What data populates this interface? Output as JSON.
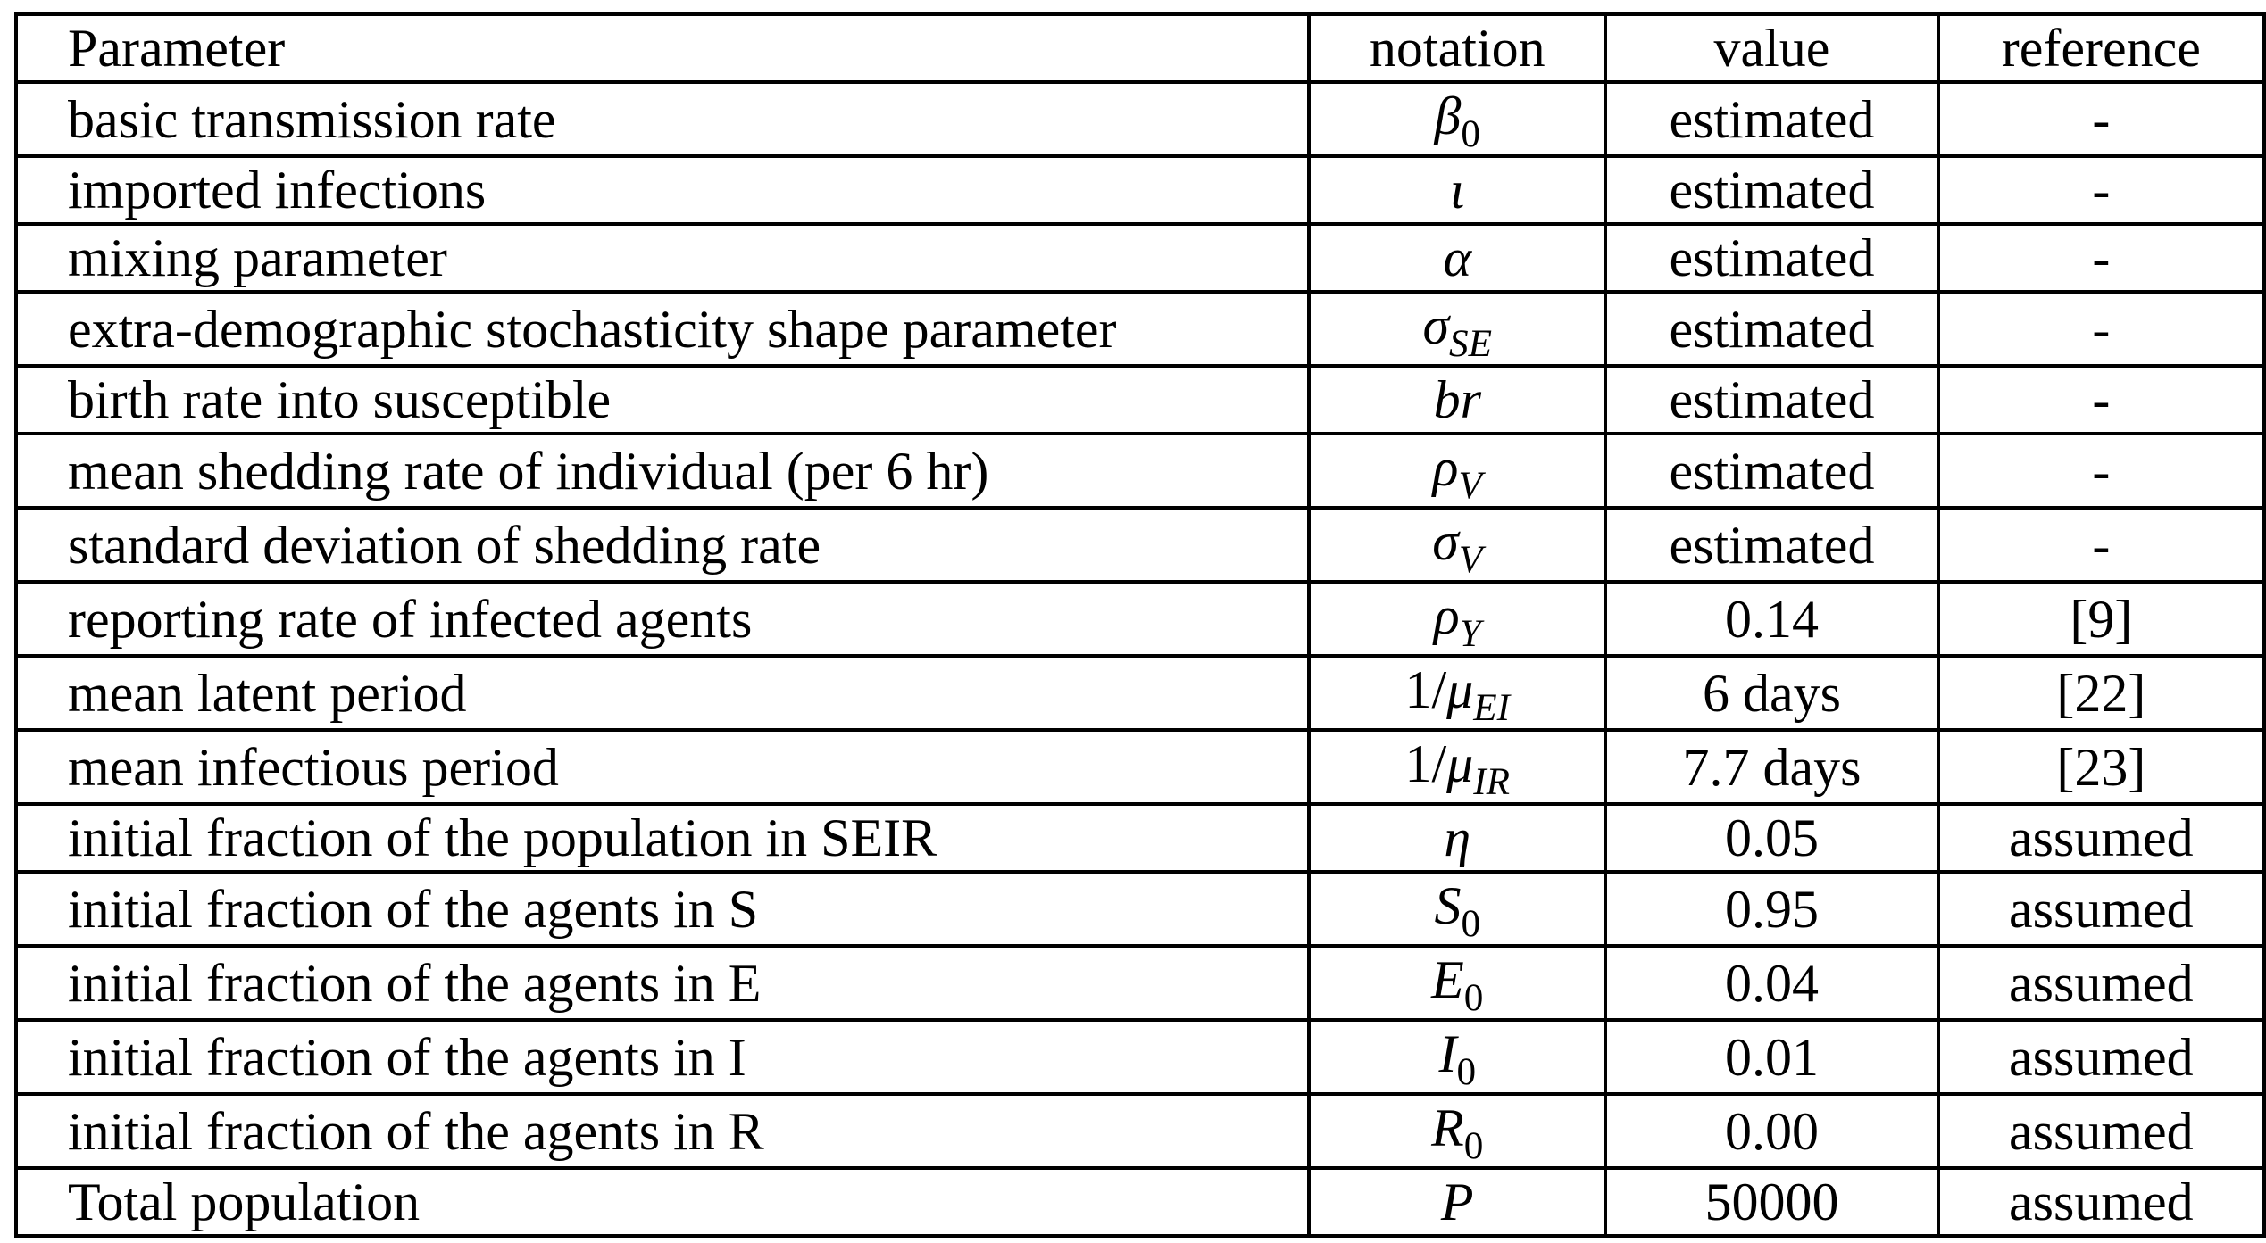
{
  "headers": {
    "parameter": "Parameter",
    "notation": "notation",
    "value": "value",
    "reference": "reference"
  },
  "rows": [
    {
      "parameter": "basic transmission rate",
      "sym": "β",
      "sub": "0",
      "sub_italic": false,
      "pre": "",
      "value": "estimated",
      "reference": "-"
    },
    {
      "parameter": "imported infections",
      "sym": "ι",
      "sub": "",
      "sub_italic": false,
      "pre": "",
      "value": "estimated",
      "reference": "-"
    },
    {
      "parameter": "mixing parameter",
      "sym": "α",
      "sub": "",
      "sub_italic": false,
      "pre": "",
      "value": "estimated",
      "reference": "-"
    },
    {
      "parameter": "extra-demographic stochasticity shape parameter",
      "sym": "σ",
      "sub": "SE",
      "sub_italic": true,
      "pre": "",
      "value": "estimated",
      "reference": "-"
    },
    {
      "parameter": "birth rate into susceptible",
      "sym": "br",
      "sub": "",
      "sub_italic": false,
      "pre": "",
      "value": "estimated",
      "reference": "-"
    },
    {
      "parameter": "mean shedding rate of individual (per 6 hr)",
      "sym": "ρ",
      "sub": "V",
      "sub_italic": true,
      "pre": "",
      "value": "estimated",
      "reference": "-"
    },
    {
      "parameter": "standard deviation of shedding rate",
      "sym": "σ",
      "sub": "V",
      "sub_italic": true,
      "pre": "",
      "value": "estimated",
      "reference": "-"
    },
    {
      "parameter": "reporting rate of infected agents",
      "sym": "ρ",
      "sub": "Y",
      "sub_italic": true,
      "pre": "",
      "value": "0.14",
      "reference": "[9]"
    },
    {
      "parameter": "mean latent period",
      "sym": "μ",
      "sub": "EI",
      "sub_italic": true,
      "pre": "1/",
      "value": "6 days",
      "reference": "[22]"
    },
    {
      "parameter": "mean infectious period",
      "sym": "μ",
      "sub": "IR",
      "sub_italic": true,
      "pre": "1/",
      "value": "7.7 days",
      "reference": "[23]"
    },
    {
      "parameter": "initial fraction of the population in SEIR",
      "sym": "η",
      "sub": "",
      "sub_italic": false,
      "pre": "",
      "value": "0.05",
      "reference": "assumed"
    },
    {
      "parameter": "initial fraction of the agents in S",
      "sym": "S",
      "sub": "0",
      "sub_italic": false,
      "pre": "",
      "value": "0.95",
      "reference": "assumed"
    },
    {
      "parameter": "initial fraction of the agents in E",
      "sym": "E",
      "sub": "0",
      "sub_italic": false,
      "pre": "",
      "value": "0.04",
      "reference": "assumed"
    },
    {
      "parameter": "initial fraction of the agents in I",
      "sym": "I",
      "sub": "0",
      "sub_italic": false,
      "pre": "",
      "value": "0.01",
      "reference": "assumed"
    },
    {
      "parameter": "initial fraction of the agents in R",
      "sym": "R",
      "sub": "0",
      "sub_italic": false,
      "pre": "",
      "value": "0.00",
      "reference": "assumed"
    },
    {
      "parameter": "Total population",
      "sym": "P",
      "sub": "",
      "sub_italic": false,
      "pre": "",
      "value": "50000",
      "reference": "assumed"
    }
  ]
}
